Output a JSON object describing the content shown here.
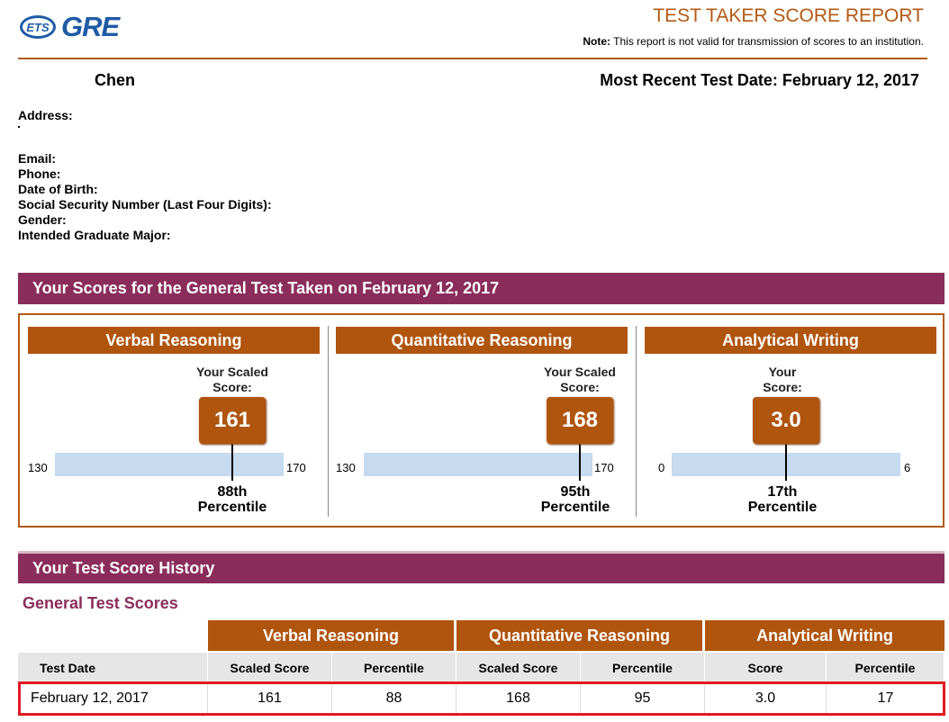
{
  "header": {
    "ets": "ETS",
    "gre": "GRE",
    "title": "TEST TAKER SCORE REPORT",
    "note_label": "Note:",
    "note_text": " This report is not valid for transmission of scores to an institution."
  },
  "candidate": {
    "name": "Chen",
    "recent_test": "Most Recent Test Date: February 12, 2017",
    "fields": {
      "address": "Address:",
      "email": "Email:",
      "phone": "Phone:",
      "dob": "Date of Birth:",
      "ssn": "Social Security Number (Last Four Digits):",
      "gender": "Gender:",
      "major": "Intended Graduate Major:"
    }
  },
  "scores": {
    "heading": "Your Scores for the General Test Taken on February 12, 2017",
    "sections": [
      {
        "title": "Verbal Reasoning",
        "label1": "Your Scaled",
        "label2": "Score:",
        "score": "161",
        "min": "130",
        "max": "170",
        "pct1": "88th",
        "pct2": "Percentile",
        "value": 161,
        "range": [
          130,
          170
        ]
      },
      {
        "title": "Quantitative Reasoning",
        "label1": "Your Scaled",
        "label2": "Score:",
        "score": "168",
        "min": "130",
        "max": "170",
        "pct1": "95th",
        "pct2": "Percentile",
        "value": 168,
        "range": [
          130,
          170
        ]
      },
      {
        "title": "Analytical Writing",
        "label1": "Your",
        "label2": "Score:",
        "score": "3.0",
        "min": "0",
        "max": "6",
        "pct1": "17th",
        "pct2": "Percentile",
        "value": 3.0,
        "range": [
          0,
          6
        ]
      }
    ]
  },
  "history": {
    "heading": "Your Test Score History",
    "subheading": "General Test Scores",
    "groups": [
      "Verbal Reasoning",
      "Quantitative Reasoning",
      "Analytical Writing"
    ],
    "columns": [
      "Test Date",
      "Scaled Score",
      "Percentile",
      "Scaled Score",
      "Percentile",
      "Score",
      "Percentile"
    ],
    "rows": [
      [
        "February 12, 2017",
        "161",
        "88",
        "168",
        "95",
        "3.0",
        "17"
      ]
    ]
  },
  "colors": {
    "accent": "#b0550e",
    "purple": "#8a2d5b",
    "bar": "#c6daf0",
    "highlight": "#e01b24"
  }
}
